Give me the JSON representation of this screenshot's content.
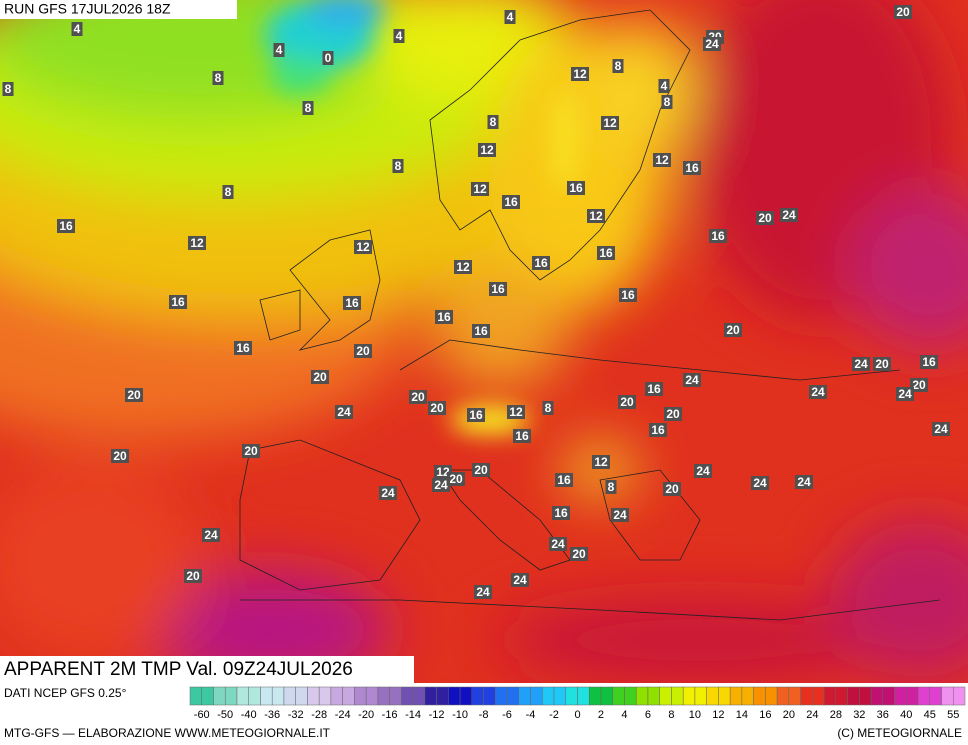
{
  "header": "RUN GFS 17JUL2026 18Z",
  "title": "APPARENT 2M TMP Val. 09Z24JUL2026",
  "source": "DATI NCEP GFS 0.25°",
  "footer_left": "MTG-GFS — ELABORAZIONE WWW.METEOGIORNALE.IT",
  "footer_right": "(C) METEOGIORNALE",
  "colorbar": {
    "ticks": [
      -60,
      -50,
      -40,
      -36,
      -32,
      -28,
      -24,
      -20,
      -16,
      -14,
      -12,
      -10,
      -8,
      -6,
      -4,
      -2,
      0,
      2,
      4,
      6,
      8,
      10,
      12,
      14,
      16,
      20,
      24,
      28,
      32,
      36,
      40,
      45,
      55
    ],
    "colors": [
      "#3cc8a0",
      "#7ed8c0",
      "#b0e8e0",
      "#c8e8f0",
      "#d0d8f0",
      "#d8c8ec",
      "#c8a8e0",
      "#b088d0",
      "#9870c0",
      "#7050b0",
      "#3020a0",
      "#1010c0",
      "#2040e0",
      "#2070f0",
      "#20a0f8",
      "#20c8f8",
      "#20e0e0",
      "#10c040",
      "#40d020",
      "#90e000",
      "#c8f000",
      "#f0f000",
      "#f8d800",
      "#f8b000",
      "#f89000",
      "#f06020",
      "#e83020",
      "#d01830",
      "#c01040",
      "#c01070",
      "#d020a0",
      "#e040d0",
      "#f090f0"
    ]
  },
  "map_labels": [
    4,
    4,
    4,
    4,
    0,
    8,
    8,
    8,
    8,
    8,
    12,
    4,
    8,
    20,
    24,
    20,
    12,
    12,
    12,
    16,
    8,
    8,
    12,
    16,
    16,
    12,
    20,
    24,
    16,
    12,
    12,
    16,
    16,
    12,
    16,
    16,
    16,
    16,
    16,
    16,
    16,
    20,
    16,
    20,
    20,
    24,
    20,
    16,
    24,
    16,
    20,
    24,
    24,
    20,
    20,
    20,
    24,
    20,
    16,
    12,
    8,
    20,
    16,
    16,
    24,
    20,
    20,
    12,
    12,
    20,
    24,
    20,
    24,
    16,
    8,
    24,
    24,
    20,
    24,
    16,
    24,
    24,
    24,
    20,
    20,
    24,
    24
  ]
}
